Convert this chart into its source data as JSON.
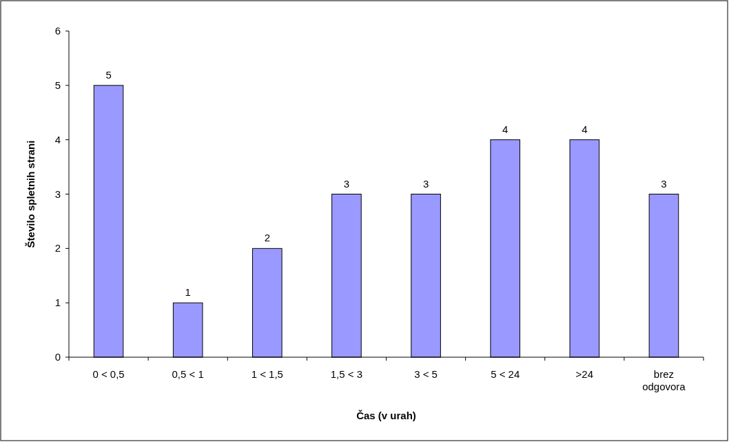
{
  "chart_data": {
    "type": "bar",
    "xlabel": "Čas (v urah)",
    "ylabel": "Število spletnih strani",
    "categories": [
      "0 < 0,5",
      "0,5 < 1",
      "1 < 1,5",
      "1,5 < 3",
      "3 < 5",
      "5 < 24",
      ">24",
      "brez odgovora"
    ],
    "values": [
      5,
      1,
      2,
      3,
      3,
      4,
      4,
      3
    ],
    "color": "#9999ff",
    "ylim": [
      0,
      6
    ],
    "yticks": [
      0,
      1,
      2,
      3,
      4,
      5,
      6
    ],
    "grid": false,
    "data_labels": true
  }
}
